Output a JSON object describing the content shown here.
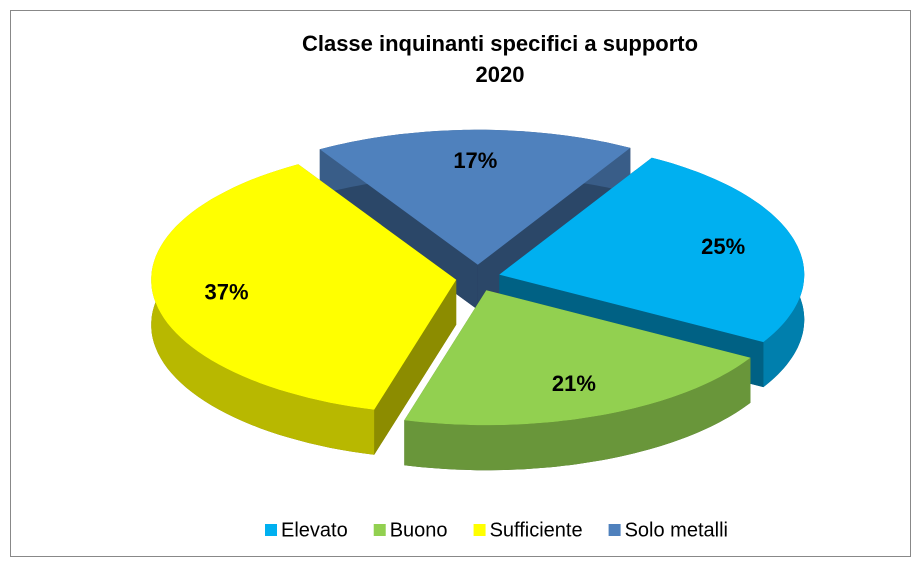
{
  "chart_data": {
    "type": "pie",
    "title": "Classe inquinanti specifici a supporto",
    "subtitle": "2020",
    "categories": [
      "Elevato",
      "Buono",
      "Sufficiente",
      "Solo metalli"
    ],
    "values": [
      25,
      21,
      37,
      17
    ],
    "value_labels": [
      "25%",
      "21%",
      "37%",
      "17%"
    ],
    "colors": [
      "#00b0f0",
      "#92d050",
      "#ffff00",
      "#4f81bd"
    ],
    "legend": "bottom"
  }
}
